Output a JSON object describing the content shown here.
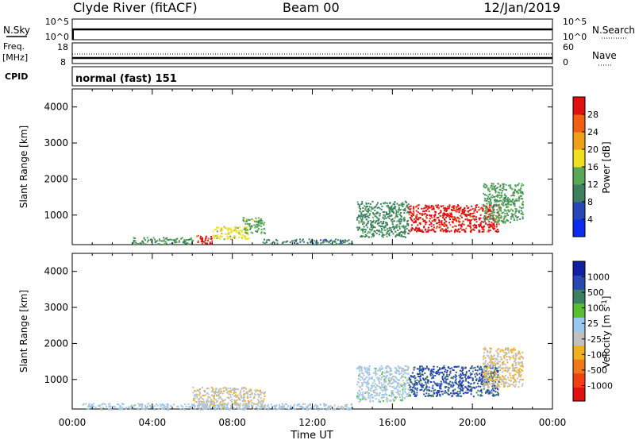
{
  "header": {
    "station": "Clyde River (fitACF)",
    "beam": "Beam 00",
    "date": "12/Jan/2019"
  },
  "top_panels": {
    "nsky_label": "N.Sky",
    "nsky_ticks": [
      "10^5",
      "10^0"
    ],
    "nsearch_label": "N.Search",
    "nsearch_ticks": [
      "10^5",
      "10^0"
    ],
    "freq_label": "Freq.",
    "freq_unit": "[MHz]",
    "freq_ticks": [
      "18",
      "8"
    ],
    "nave_label": "Nave",
    "nave_ticks": [
      "60",
      "0"
    ],
    "cpid_label": "CPID",
    "cpid_value": "normal (fast) 151"
  },
  "colors": {
    "power_scale": [
      "#0a2cf0",
      "#2848b8",
      "#3c8060",
      "#58a858",
      "#f0e020",
      "#f0a018",
      "#f06010",
      "#e01010"
    ],
    "velocity_scale": [
      "#e01010",
      "#f04010",
      "#f07818",
      "#f0b020",
      "#c0c0c0",
      "#98c8f0",
      "#58c030",
      "#3c8060",
      "#2848b8",
      "#1020a0"
    ]
  },
  "chart_data": [
    {
      "type": "heatmap",
      "name": "power-panel",
      "ylabel": "Slant Range [km]",
      "xlabel": "",
      "x_ticks": [
        "00:00",
        "04:00",
        "08:00",
        "12:00",
        "16:00",
        "20:00",
        "00:00"
      ],
      "x_range_hours": [
        0,
        24
      ],
      "y_ticks": [
        1000,
        2000,
        3000,
        4000
      ],
      "y_range_km": [
        180,
        4500
      ],
      "colorbar": {
        "label": "Power [dB]",
        "ticks": [
          "4",
          "8",
          "12",
          "16",
          "20",
          "24",
          "28"
        ],
        "range": [
          0,
          30
        ]
      },
      "regions": [
        {
          "t0": 6.2,
          "t1": 7.0,
          "r0": 200,
          "r1": 450,
          "level": 27
        },
        {
          "t0": 7.0,
          "t1": 8.8,
          "r0": 350,
          "r1": 700,
          "level": 17
        },
        {
          "t0": 8.5,
          "t1": 9.6,
          "r0": 500,
          "r1": 950,
          "level": 13
        },
        {
          "t0": 3.0,
          "t1": 6.0,
          "r0": 200,
          "r1": 400,
          "level": 11
        },
        {
          "t0": 9.5,
          "t1": 14.0,
          "r0": 200,
          "r1": 350,
          "level": 9
        },
        {
          "t0": 14.2,
          "t1": 16.8,
          "r0": 400,
          "r1": 1400,
          "level": 10
        },
        {
          "t0": 16.8,
          "t1": 21.3,
          "r0": 550,
          "r1": 1300,
          "level": 28
        },
        {
          "t0": 20.5,
          "t1": 22.5,
          "r0": 800,
          "r1": 1900,
          "level": 12
        }
      ]
    },
    {
      "type": "heatmap",
      "name": "velocity-panel",
      "ylabel": "Slant Range [km]",
      "xlabel": "Time UT",
      "x_ticks": [
        "00:00",
        "04:00",
        "08:00",
        "12:00",
        "16:00",
        "20:00",
        "00:00"
      ],
      "x_range_hours": [
        0,
        24
      ],
      "y_ticks": [
        1000,
        2000,
        3000,
        4000
      ],
      "y_range_km": [
        180,
        4500
      ],
      "colorbar": {
        "label": "Velocity [m s^-1]",
        "ticks": [
          "-1000",
          "-500",
          "-100",
          "-25",
          "25",
          "100",
          "500",
          "1000"
        ],
        "range": [
          -1200,
          1200
        ]
      },
      "regions": [
        {
          "t0": 6.0,
          "t1": 9.6,
          "r0": 200,
          "r1": 800,
          "level": -150
        },
        {
          "t0": 0.5,
          "t1": 14.0,
          "r0": 180,
          "r1": 350,
          "level": 60
        },
        {
          "t0": 14.2,
          "t1": 16.8,
          "r0": 400,
          "r1": 1400,
          "level": 80
        },
        {
          "t0": 16.8,
          "t1": 21.3,
          "r0": 550,
          "r1": 1400,
          "level": 800
        },
        {
          "t0": 20.5,
          "t1": 22.5,
          "r0": 800,
          "r1": 1900,
          "level": -200
        }
      ]
    }
  ]
}
